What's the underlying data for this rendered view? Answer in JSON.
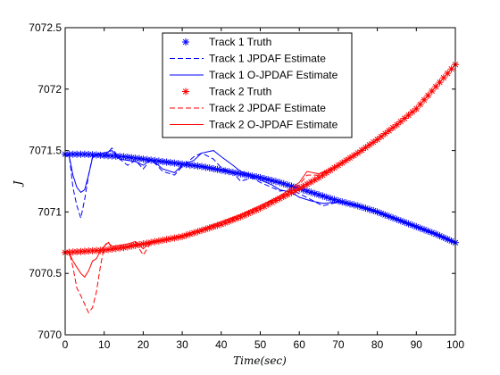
{
  "chart_data": {
    "type": "line",
    "title": "",
    "xlabel": "Time(sec)",
    "ylabel": "J",
    "xlim": [
      0,
      100
    ],
    "ylim": [
      7070,
      7072.5
    ],
    "xticks": [
      0,
      10,
      20,
      30,
      40,
      50,
      60,
      70,
      80,
      90,
      100
    ],
    "yticks": [
      7070,
      7070.5,
      7071,
      7071.5,
      7072,
      7072.5
    ],
    "x_tick_labels": [
      "0",
      "10",
      "20",
      "30",
      "40",
      "50",
      "60",
      "70",
      "80",
      "90",
      "100"
    ],
    "y_tick_labels": [
      "7070",
      "7070.5",
      "7071",
      "7071.5",
      "7072",
      "7072.5"
    ],
    "grid": false,
    "legend_position": "top-center",
    "series": [
      {
        "name": "Track 1 Truth",
        "color": "#0000ff",
        "style": "marker",
        "marker": "asterisk",
        "x": [
          0,
          5,
          10,
          15,
          20,
          25,
          30,
          35,
          40,
          45,
          50,
          55,
          60,
          65,
          70,
          75,
          80,
          85,
          90,
          95,
          100
        ],
        "y": [
          7071.47,
          7071.47,
          7071.46,
          7071.45,
          7071.43,
          7071.41,
          7071.39,
          7071.37,
          7071.34,
          7071.31,
          7071.28,
          7071.24,
          7071.19,
          7071.14,
          7071.09,
          7071.05,
          7071.0,
          7070.94,
          7070.88,
          7070.82,
          7070.75
        ]
      },
      {
        "name": "Track 1 JPDAF Estimate",
        "color": "#0000ff",
        "style": "dashed",
        "x": [
          0,
          1,
          2,
          3,
          4,
          5,
          6,
          7,
          8,
          10,
          12,
          14,
          16,
          18,
          20,
          22,
          25,
          28,
          30,
          33,
          35,
          38,
          40,
          43,
          45,
          48,
          50,
          53,
          55,
          58,
          60,
          63,
          66,
          70,
          75,
          80,
          85,
          90,
          95,
          100
        ],
        "y": [
          7071.45,
          7071.47,
          7071.2,
          7071.05,
          7070.95,
          7071.1,
          7071.3,
          7071.45,
          7071.47,
          7071.45,
          7071.52,
          7071.43,
          7071.38,
          7071.42,
          7071.35,
          7071.43,
          7071.33,
          7071.3,
          7071.37,
          7071.45,
          7071.48,
          7071.43,
          7071.36,
          7071.32,
          7071.25,
          7071.28,
          7071.24,
          7071.2,
          7071.17,
          7071.18,
          7071.15,
          7071.1,
          7071.05,
          7071.08,
          7071.05,
          7071.0,
          7070.94,
          7070.88,
          7070.82,
          7070.75
        ]
      },
      {
        "name": "Track 1 O-JPDAF Estimate",
        "color": "#0000ff",
        "style": "solid",
        "x": [
          0,
          1,
          2,
          3,
          4,
          5,
          6,
          7,
          8,
          10,
          12,
          14,
          16,
          18,
          20,
          22,
          25,
          28,
          30,
          33,
          35,
          38,
          40,
          43,
          45,
          48,
          50,
          53,
          55,
          58,
          60,
          63,
          66,
          70,
          75,
          80,
          85,
          90,
          95,
          100
        ],
        "y": [
          7071.45,
          7071.46,
          7071.3,
          7071.2,
          7071.16,
          7071.18,
          7071.3,
          7071.44,
          7071.47,
          7071.48,
          7071.5,
          7071.43,
          7071.42,
          7071.41,
          7071.38,
          7071.43,
          7071.35,
          7071.32,
          7071.38,
          7071.42,
          7071.48,
          7071.5,
          7071.45,
          7071.38,
          7071.33,
          7071.3,
          7071.26,
          7071.22,
          7071.18,
          7071.16,
          7071.12,
          7071.09,
          7071.07,
          7071.08,
          7071.05,
          7071.0,
          7070.94,
          7070.88,
          7070.82,
          7070.75
        ]
      },
      {
        "name": "Track 2 Truth",
        "color": "#ff0000",
        "style": "marker",
        "marker": "asterisk",
        "x": [
          0,
          5,
          10,
          15,
          20,
          25,
          30,
          35,
          40,
          45,
          50,
          55,
          60,
          65,
          70,
          75,
          80,
          85,
          90,
          95,
          100
        ],
        "y": [
          7070.67,
          7070.68,
          7070.69,
          7070.71,
          7070.74,
          7070.77,
          7070.8,
          7070.85,
          7070.9,
          7070.96,
          7071.03,
          7071.11,
          7071.19,
          7071.28,
          7071.38,
          7071.48,
          7071.59,
          7071.71,
          7071.84,
          7072.02,
          7072.2
        ]
      },
      {
        "name": "Track 2 JPDAF Estimate",
        "color": "#ff0000",
        "style": "dashed",
        "x": [
          0,
          1,
          2,
          3,
          4,
          5,
          6,
          7,
          8,
          9,
          10,
          11,
          12,
          14,
          16,
          18,
          20,
          22,
          25,
          30,
          35,
          40,
          45,
          50,
          55,
          60,
          62,
          65,
          70,
          75,
          80,
          85,
          90,
          95,
          100
        ],
        "y": [
          7070.67,
          7070.68,
          7070.55,
          7070.38,
          7070.32,
          7070.25,
          7070.18,
          7070.22,
          7070.35,
          7070.55,
          7070.72,
          7070.76,
          7070.7,
          7070.72,
          7070.72,
          7070.75,
          7070.65,
          7070.75,
          7070.77,
          7070.8,
          7070.86,
          7070.92,
          7070.97,
          7071.05,
          7071.12,
          7071.22,
          7071.3,
          7071.3,
          7071.38,
          7071.48,
          7071.59,
          7071.71,
          7071.84,
          7072.02,
          7072.2
        ]
      },
      {
        "name": "Track 2 O-JPDAF Estimate",
        "color": "#ff0000",
        "style": "solid",
        "x": [
          0,
          1,
          2,
          3,
          4,
          5,
          6,
          7,
          8,
          9,
          10,
          11,
          12,
          14,
          16,
          18,
          20,
          22,
          25,
          30,
          35,
          40,
          45,
          50,
          55,
          60,
          62,
          65,
          70,
          75,
          80,
          85,
          90,
          95,
          100
        ],
        "y": [
          7070.67,
          7070.67,
          7070.6,
          7070.55,
          7070.5,
          7070.47,
          7070.52,
          7070.6,
          7070.62,
          7070.68,
          7070.72,
          7070.75,
          7070.72,
          7070.73,
          7070.74,
          7070.76,
          7070.7,
          7070.76,
          7070.77,
          7070.81,
          7070.86,
          7070.92,
          7070.98,
          7071.05,
          7071.13,
          7071.24,
          7071.33,
          7071.31,
          7071.38,
          7071.48,
          7071.59,
          7071.71,
          7071.84,
          7072.02,
          7072.2
        ]
      }
    ]
  }
}
